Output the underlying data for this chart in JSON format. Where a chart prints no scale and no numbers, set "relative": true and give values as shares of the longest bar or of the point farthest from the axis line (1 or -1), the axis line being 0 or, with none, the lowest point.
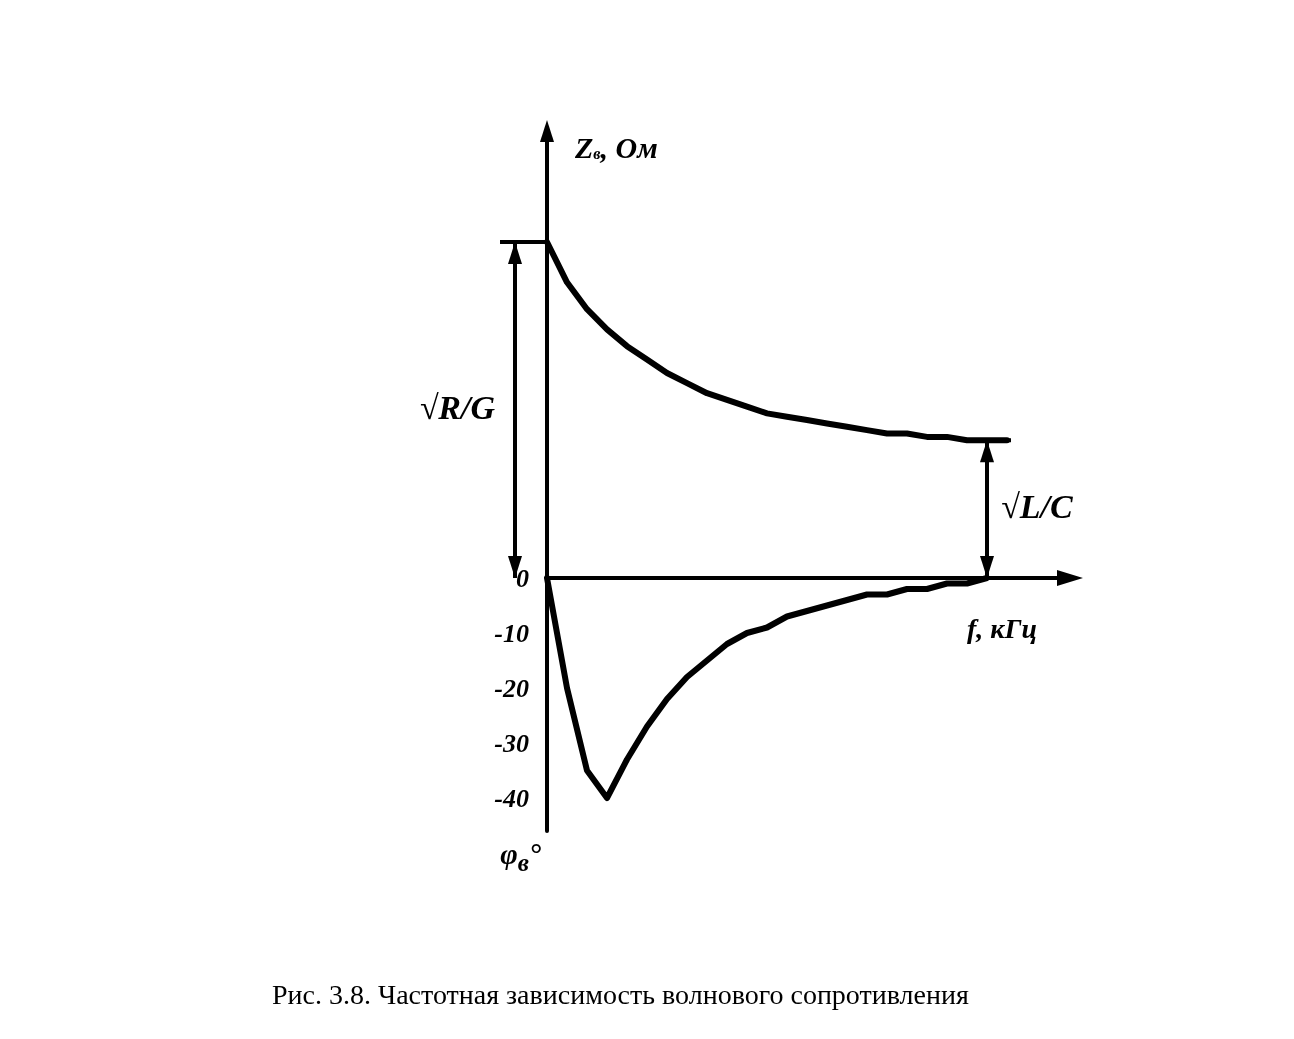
{
  "chart_data": [
    {
      "type": "line",
      "relative": true,
      "ylabel": "Z$_{в}$, Ом",
      "tick_labels": false,
      "marker": "none",
      "line_style": "solid",
      "grid": false,
      "categories": [
        null,
        null,
        null,
        null,
        null,
        null,
        null,
        null,
        null,
        null,
        null,
        null,
        null,
        null,
        null,
        null,
        null,
        null,
        null,
        null,
        null,
        null,
        null,
        null
      ],
      "series": [
        {
          "color": "#000000",
          "values": [
            1.0,
            0.88,
            0.8,
            0.74,
            0.69,
            0.65,
            0.61,
            0.58,
            0.55,
            0.53,
            0.51,
            0.49,
            0.48,
            0.47,
            0.46,
            0.45,
            0.44,
            0.43,
            0.43,
            0.42,
            0.42,
            0.41,
            0.41,
            0.41
          ]
        }
      ],
      "annotations": [
        "√R/G",
        "√L/C"
      ]
    },
    {
      "type": "line",
      "ylabel": "φ$_{в}$°",
      "xlabel": "f, кГц",
      "tick_labels": "y",
      "marker": "none",
      "line_style": "solid",
      "grid": false,
      "categories": [
        null,
        null,
        null,
        null,
        null,
        null,
        null,
        null,
        null,
        null,
        null,
        null,
        null,
        null,
        null,
        null,
        null,
        null,
        null,
        null,
        null,
        null,
        null,
        null
      ],
      "ylim": [
        -46,
        0
      ],
      "yticks": [
        0,
        -10,
        -20,
        -30,
        -40
      ],
      "series": [
        {
          "color": "#000000",
          "values": [
            0,
            -20,
            -35,
            -40,
            -33,
            -27,
            -22,
            -18,
            -15,
            -12,
            -10,
            -9,
            -7,
            -6,
            -5,
            -4,
            -3,
            -3,
            -2,
            -2,
            -1,
            -1,
            0,
            null
          ]
        }
      ],
      "annotations": [
        "Рис. 3.8. Частотная зависимость волнового сопротивления"
      ]
    }
  ]
}
